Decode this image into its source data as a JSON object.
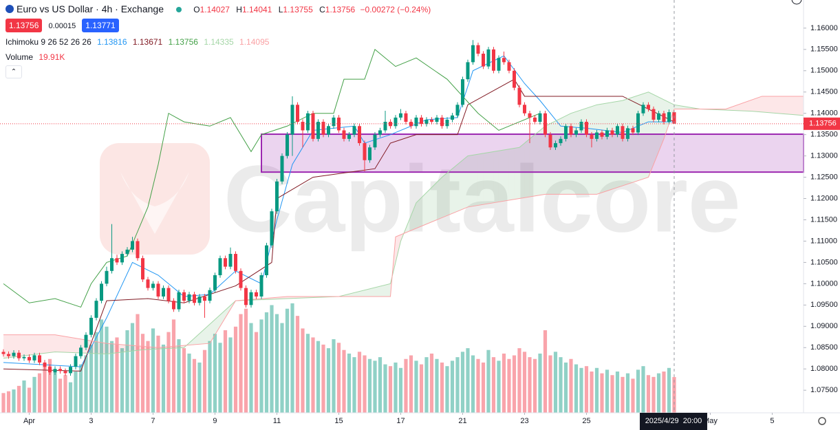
{
  "header": {
    "symbol": "Euro vs US Dollar · 4h · Exchange",
    "ohlc": [
      {
        "key": "O",
        "value": "1.14027"
      },
      {
        "key": "H",
        "value": "1.14041"
      },
      {
        "key": "L",
        "value": "1.13755"
      },
      {
        "key": "C",
        "value": "1.13756"
      }
    ],
    "change": "−0.00272 (−0.24%)",
    "sell": "1.13756",
    "spread": "0.00015",
    "buy": "1.13771",
    "indicator": {
      "label": "Ichimoku 9 26 52 26 26",
      "readings": [
        "1.13816",
        "1.13671",
        "1.13756",
        "1.14335",
        "1.14095"
      ]
    },
    "volume": {
      "label": "Volume",
      "value": "19.91K"
    }
  },
  "chart_data": {
    "type": "candlestick",
    "watermark": "Capitalcore",
    "up_color": "#089981",
    "down_color": "#f23645",
    "xlim": [
      -0.667,
      155.07
    ],
    "ylim": [
      1.0697,
      1.1666
    ],
    "vlim": [
      0,
      230000
    ],
    "xticks": [
      {
        "value": 5,
        "label": "Apr"
      },
      {
        "value": 17,
        "label": "3"
      },
      {
        "value": 29,
        "label": "7"
      },
      {
        "value": 41,
        "label": "9"
      },
      {
        "value": 53,
        "label": "11"
      },
      {
        "value": 65,
        "label": "15"
      },
      {
        "value": 77,
        "label": "17"
      },
      {
        "value": 89,
        "label": "21"
      },
      {
        "value": 101,
        "label": "23"
      },
      {
        "value": 113,
        "label": "25"
      },
      {
        "value": 137,
        "label": "May"
      },
      {
        "value": 149,
        "label": "5"
      }
    ],
    "yticks": [
      {
        "value": 1.075,
        "label": "1.07500"
      },
      {
        "value": 1.08,
        "label": "1.08000"
      },
      {
        "value": 1.085,
        "label": "1.08500"
      },
      {
        "value": 1.09,
        "label": "1.09000"
      },
      {
        "value": 1.095,
        "label": "1.09500"
      },
      {
        "value": 1.1,
        "label": "1.10000"
      },
      {
        "value": 1.105,
        "label": "1.10500"
      },
      {
        "value": 1.11,
        "label": "1.11000"
      },
      {
        "value": 1.115,
        "label": "1.11500"
      },
      {
        "value": 1.12,
        "label": "1.12000"
      },
      {
        "value": 1.125,
        "label": "1.12500"
      },
      {
        "value": 1.13,
        "label": "1.13000"
      },
      {
        "value": 1.135,
        "label": "1.13500"
      },
      {
        "value": 1.14,
        "label": "1.14000"
      },
      {
        "value": 1.145,
        "label": "1.14500"
      },
      {
        "value": 1.15,
        "label": "1.15000"
      },
      {
        "value": 1.155,
        "label": "1.15500"
      },
      {
        "value": 1.16,
        "label": "1.16000"
      }
    ],
    "last_price_label": "1.13756",
    "cursor": {
      "x": 130,
      "label": "2025/4/29  20:00"
    },
    "zone": {
      "start": 50,
      "low": 1.1262,
      "high": 1.1351,
      "color": "#9c27b0"
    },
    "candles": [
      [
        1.084,
        1.0846,
        1.0829,
        1.0835
      ],
      [
        1.0835,
        1.0841,
        1.0824,
        1.083
      ],
      [
        1.083,
        1.0844,
        1.0824,
        1.0838
      ],
      [
        1.0838,
        1.0844,
        1.0819,
        1.0825
      ],
      [
        1.0825,
        1.0834,
        1.0819,
        1.0828
      ],
      [
        1.0828,
        1.0834,
        1.0814,
        1.082
      ],
      [
        1.082,
        1.0838,
        1.0814,
        1.0832
      ],
      [
        1.0832,
        1.0838,
        1.0809,
        1.0815
      ],
      [
        1.0815,
        1.0821,
        1.0799,
        1.0805
      ],
      [
        1.0805,
        1.0811,
        1.0786,
        1.0792
      ],
      [
        1.0792,
        1.0806,
        1.0786,
        1.08
      ],
      [
        1.08,
        1.0806,
        1.0789,
        1.0795
      ],
      [
        1.0795,
        1.0801,
        1.0784,
        1.079
      ],
      [
        1.079,
        1.0811,
        1.0784,
        1.0805
      ],
      [
        1.0805,
        1.0836,
        1.0799,
        1.083
      ],
      [
        1.083,
        1.0856,
        1.0824,
        1.085
      ],
      [
        1.085,
        1.0886,
        1.0844,
        1.088
      ],
      [
        1.088,
        1.0926,
        1.0874,
        1.092
      ],
      [
        1.092,
        1.0966,
        1.0914,
        1.096
      ],
      [
        1.096,
        1.1006,
        1.0954,
        1.1
      ],
      [
        1.1,
        1.104,
        1.0994,
        1.103
      ],
      [
        1.103,
        1.114,
        1.1024,
        1.106
      ],
      [
        1.106,
        1.1068,
        1.1044,
        1.105
      ],
      [
        1.105,
        1.1076,
        1.1044,
        1.107
      ],
      [
        1.107,
        1.1086,
        1.1064,
        1.108
      ],
      [
        1.108,
        1.111,
        1.1074,
        1.11
      ],
      [
        1.11,
        1.1106,
        1.1054,
        1.106
      ],
      [
        1.106,
        1.1066,
        1.1004,
        1.101
      ],
      [
        1.101,
        1.1016,
        1.0984,
        1.099
      ],
      [
        1.099,
        1.1006,
        1.0984,
        1.1
      ],
      [
        1.1,
        1.1006,
        1.0964,
        1.097
      ],
      [
        1.097,
        1.0996,
        1.0964,
        1.099
      ],
      [
        1.099,
        1.0996,
        1.0954,
        1.096
      ],
      [
        1.096,
        1.0966,
        1.0934,
        1.094
      ],
      [
        1.094,
        1.0986,
        1.0934,
        1.098
      ],
      [
        1.098,
        1.0986,
        1.0954,
        1.096
      ],
      [
        1.096,
        1.0981,
        1.0954,
        1.0975
      ],
      [
        1.0975,
        1.0981,
        1.0949,
        1.0955
      ],
      [
        1.0955,
        1.0976,
        1.0949,
        1.097
      ],
      [
        1.097,
        1.0976,
        1.092,
        1.096
      ],
      [
        1.096,
        1.0991,
        1.0954,
        1.0985
      ],
      [
        1.0985,
        1.1026,
        1.0979,
        1.102
      ],
      [
        1.102,
        1.1066,
        1.1014,
        1.106
      ],
      [
        1.106,
        1.1066,
        1.1034,
        1.104
      ],
      [
        1.104,
        1.1085,
        1.1034,
        1.107
      ],
      [
        1.107,
        1.1076,
        1.1024,
        1.103
      ],
      [
        1.103,
        1.1036,
        1.0984,
        1.099
      ],
      [
        1.099,
        1.0996,
        1.0944,
        1.095
      ],
      [
        1.095,
        1.0986,
        1.0944,
        1.098
      ],
      [
        1.098,
        1.0986,
        1.0964,
        1.097
      ],
      [
        1.097,
        1.1026,
        1.0964,
        1.102
      ],
      [
        1.102,
        1.1096,
        1.1014,
        1.109
      ],
      [
        1.109,
        1.1176,
        1.1084,
        1.117
      ],
      [
        1.117,
        1.1246,
        1.1164,
        1.124
      ],
      [
        1.124,
        1.1306,
        1.1234,
        1.13
      ],
      [
        1.13,
        1.1356,
        1.1294,
        1.135
      ],
      [
        1.135,
        1.144,
        1.13,
        1.142
      ],
      [
        1.142,
        1.1426,
        1.1374,
        1.138
      ],
      [
        1.138,
        1.1386,
        1.132,
        1.136
      ],
      [
        1.136,
        1.1406,
        1.1354,
        1.14
      ],
      [
        1.14,
        1.1406,
        1.1334,
        1.134
      ],
      [
        1.134,
        1.1386,
        1.1334,
        1.138
      ],
      [
        1.138,
        1.1386,
        1.1344,
        1.135
      ],
      [
        1.135,
        1.1376,
        1.1344,
        1.137
      ],
      [
        1.137,
        1.1396,
        1.1364,
        1.139
      ],
      [
        1.139,
        1.1396,
        1.1354,
        1.136
      ],
      [
        1.136,
        1.1366,
        1.1334,
        1.134
      ],
      [
        1.134,
        1.1356,
        1.1334,
        1.135
      ],
      [
        1.135,
        1.1376,
        1.1344,
        1.137
      ],
      [
        1.137,
        1.1376,
        1.1324,
        1.133
      ],
      [
        1.133,
        1.1336,
        1.1264,
        1.129
      ],
      [
        1.129,
        1.1326,
        1.1284,
        1.132
      ],
      [
        1.132,
        1.1356,
        1.1314,
        1.135
      ],
      [
        1.135,
        1.1366,
        1.1344,
        1.136
      ],
      [
        1.136,
        1.1406,
        1.1354,
        1.138
      ],
      [
        1.138,
        1.1386,
        1.1364,
        1.137
      ],
      [
        1.137,
        1.1396,
        1.1364,
        1.139
      ],
      [
        1.139,
        1.141,
        1.1384,
        1.14
      ],
      [
        1.14,
        1.1406,
        1.1374,
        1.138
      ],
      [
        1.138,
        1.1386,
        1.1364,
        1.137
      ],
      [
        1.137,
        1.1396,
        1.1364,
        1.139
      ],
      [
        1.139,
        1.1396,
        1.1369,
        1.1375
      ],
      [
        1.1375,
        1.1391,
        1.1369,
        1.1385
      ],
      [
        1.1385,
        1.1391,
        1.1374,
        1.138
      ],
      [
        1.138,
        1.1396,
        1.1374,
        1.139
      ],
      [
        1.139,
        1.1396,
        1.1364,
        1.137
      ],
      [
        1.137,
        1.1391,
        1.1364,
        1.1385
      ],
      [
        1.1385,
        1.1401,
        1.1379,
        1.1395
      ],
      [
        1.1395,
        1.1426,
        1.1389,
        1.142
      ],
      [
        1.142,
        1.1486,
        1.1414,
        1.148
      ],
      [
        1.148,
        1.1526,
        1.1474,
        1.152
      ],
      [
        1.152,
        1.1572,
        1.1514,
        1.156
      ],
      [
        1.156,
        1.1566,
        1.1534,
        1.154
      ],
      [
        1.154,
        1.1546,
        1.1504,
        1.151
      ],
      [
        1.151,
        1.1556,
        1.1504,
        1.155
      ],
      [
        1.155,
        1.1556,
        1.1494,
        1.15
      ],
      [
        1.15,
        1.1536,
        1.1494,
        1.153
      ],
      [
        1.153,
        1.1545,
        1.1514,
        1.152
      ],
      [
        1.152,
        1.1526,
        1.1494,
        1.15
      ],
      [
        1.15,
        1.1506,
        1.1454,
        1.146
      ],
      [
        1.146,
        1.1466,
        1.1414,
        1.142
      ],
      [
        1.142,
        1.1426,
        1.1394,
        1.14
      ],
      [
        1.14,
        1.1406,
        1.133,
        1.139
      ],
      [
        1.139,
        1.1396,
        1.1374,
        1.138
      ],
      [
        1.138,
        1.1406,
        1.1374,
        1.14
      ],
      [
        1.14,
        1.1406,
        1.1344,
        1.135
      ],
      [
        1.135,
        1.1356,
        1.1314,
        1.132
      ],
      [
        1.132,
        1.1336,
        1.1314,
        1.133
      ],
      [
        1.133,
        1.1346,
        1.1324,
        1.134
      ],
      [
        1.134,
        1.1376,
        1.1334,
        1.137
      ],
      [
        1.137,
        1.1376,
        1.1344,
        1.135
      ],
      [
        1.135,
        1.1366,
        1.1344,
        1.136
      ],
      [
        1.136,
        1.1386,
        1.1354,
        1.138
      ],
      [
        1.138,
        1.1386,
        1.1344,
        1.135
      ],
      [
        1.135,
        1.1356,
        1.132,
        1.134
      ],
      [
        1.134,
        1.1361,
        1.1334,
        1.1355
      ],
      [
        1.1355,
        1.1361,
        1.1339,
        1.1345
      ],
      [
        1.1345,
        1.1366,
        1.1339,
        1.136
      ],
      [
        1.136,
        1.1366,
        1.1344,
        1.135
      ],
      [
        1.135,
        1.1376,
        1.1344,
        1.137
      ],
      [
        1.137,
        1.1376,
        1.1334,
        1.134
      ],
      [
        1.134,
        1.1371,
        1.1334,
        1.1365
      ],
      [
        1.1365,
        1.1371,
        1.1349,
        1.1355
      ],
      [
        1.1355,
        1.1406,
        1.1349,
        1.14
      ],
      [
        1.14,
        1.1426,
        1.1394,
        1.142
      ],
      [
        1.142,
        1.1426,
        1.1404,
        1.141
      ],
      [
        1.141,
        1.1416,
        1.1379,
        1.1385
      ],
      [
        1.1385,
        1.1406,
        1.1379,
        1.14
      ],
      [
        1.14,
        1.1406,
        1.1374,
        1.138
      ],
      [
        1.138,
        1.1409,
        1.1374,
        1.14027
      ],
      [
        1.14027,
        1.14041,
        1.13755,
        1.13756
      ]
    ],
    "volumes": [
      11000,
      12000,
      13000,
      15000,
      18000,
      14000,
      20000,
      22000,
      26000,
      30000,
      24000,
      19000,
      21000,
      17000,
      23000,
      27000,
      32000,
      38000,
      45000,
      52000,
      48000,
      40000,
      42000,
      36000,
      46000,
      50000,
      55000,
      44000,
      40000,
      47000,
      43000,
      38000,
      45000,
      52000,
      41000,
      36000,
      33000,
      30000,
      28000,
      35000,
      40000,
      44000,
      39000,
      46000,
      42000,
      48000,
      55000,
      58000,
      50000,
      45000,
      52000,
      56000,
      60000,
      55000,
      50000,
      58000,
      61000,
      54000,
      47000,
      44000,
      42000,
      40000,
      38000,
      36000,
      41000,
      39000,
      35000,
      33000,
      31000,
      34000,
      32000,
      30000,
      29000,
      31000,
      27000,
      26000,
      28000,
      25000,
      30000,
      32000,
      29000,
      27000,
      31000,
      33000,
      30000,
      28000,
      26000,
      29000,
      31000,
      34000,
      36000,
      32000,
      30000,
      28000,
      35000,
      31000,
      29000,
      33000,
      30000,
      32000,
      36000,
      34000,
      31000,
      30000,
      33000,
      46000,
      32000,
      34000,
      31000,
      28000,
      30000,
      27000,
      25000,
      26000,
      23000,
      25000,
      22000,
      24000,
      21000,
      23000,
      20000,
      22000,
      19000,
      24000,
      26000,
      21000,
      20000,
      22000,
      23000,
      25000,
      19910
    ],
    "lines": [
      {
        "color": "#2196f3",
        "x": [
          0,
          15,
          20,
          25,
          30,
          35,
          40,
          45,
          50,
          53,
          56,
          60,
          68,
          70,
          75,
          82,
          88,
          91,
          97,
          101,
          104,
          108,
          113,
          120,
          125,
          130
        ],
        "values": [
          1.0815,
          1.0805,
          1.092,
          1.105,
          1.102,
          1.097,
          1.0975,
          1.103,
          1.1,
          1.115,
          1.128,
          1.136,
          1.137,
          1.133,
          1.135,
          1.1385,
          1.139,
          1.15,
          1.1535,
          1.147,
          1.143,
          1.137,
          1.1365,
          1.1355,
          1.138,
          1.138
        ]
      },
      {
        "color": "#801922",
        "x": [
          0,
          15,
          20,
          28,
          35,
          45,
          52,
          53,
          60,
          72,
          75,
          80,
          88,
          90,
          96,
          99,
          101,
          120,
          125,
          130
        ],
        "values": [
          1.08,
          1.0795,
          1.096,
          1.0965,
          1.0955,
          1.0995,
          1.105,
          1.12,
          1.125,
          1.127,
          1.133,
          1.135,
          1.135,
          1.142,
          1.146,
          1.148,
          1.144,
          1.144,
          1.141,
          1.138
        ]
      },
      {
        "color": "#43a047",
        "x": [
          0,
          5,
          10,
          15,
          17,
          20,
          24,
          28,
          30,
          32,
          35,
          40,
          44,
          48,
          50,
          55,
          60,
          64,
          66,
          70,
          72,
          76,
          80,
          86,
          92,
          96,
          100,
          104
        ],
        "values": [
          1.1,
          1.0955,
          1.0965,
          1.0945,
          1.1,
          1.105,
          1.1065,
          1.118,
          1.128,
          1.14,
          1.138,
          1.137,
          1.139,
          1.131,
          1.135,
          1.137,
          1.14,
          1.14,
          1.148,
          1.148,
          1.155,
          1.151,
          1.153,
          1.148,
          1.14,
          1.136,
          1.138,
          1.14
        ]
      },
      {
        "color": "#a5d6a7",
        "x": [
          0,
          10,
          20,
          27,
          35,
          45,
          55,
          65,
          75,
          77,
          80,
          85,
          90,
          100,
          105,
          110,
          115,
          120,
          125,
          130,
          135,
          145,
          155
        ],
        "values": [
          1.0825,
          1.084,
          1.0835,
          1.0845,
          1.085,
          1.096,
          1.0965,
          1.097,
          1.1,
          1.11,
          1.119,
          1.125,
          1.13,
          1.132,
          1.137,
          1.14,
          1.142,
          1.143,
          1.145,
          1.142,
          1.141,
          1.1405,
          1.1395
        ]
      },
      {
        "color": "#faa1a4",
        "x": [
          0,
          10,
          20,
          30,
          40,
          45,
          55,
          75,
          76,
          90,
          100,
          105,
          115,
          125,
          128,
          130,
          140,
          147,
          155
        ],
        "values": [
          1.088,
          1.088,
          1.086,
          1.085,
          1.086,
          1.096,
          1.097,
          1.097,
          1.111,
          1.118,
          1.12,
          1.121,
          1.121,
          1.125,
          1.134,
          1.141,
          1.141,
          1.144,
          1.144
        ]
      }
    ]
  }
}
